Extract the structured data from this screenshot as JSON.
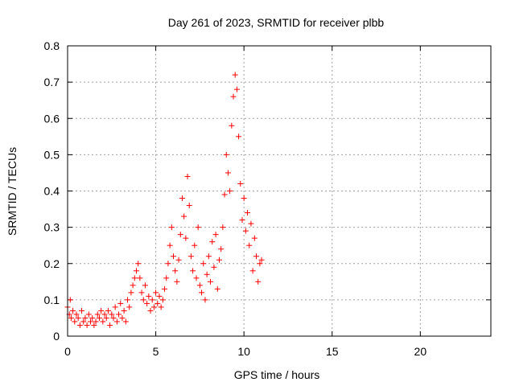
{
  "chart_data": {
    "type": "scatter",
    "title": "Day 261 of 2023, SRMTID for receiver plbb",
    "xlabel": "GPS time / hours",
    "ylabel": "SRMTID / TECUs",
    "xlim": [
      0,
      24
    ],
    "ylim": [
      0,
      0.8
    ],
    "x_ticks": [
      0,
      5,
      10,
      15,
      20
    ],
    "x_tick_labels": [
      "0",
      "5",
      "10",
      "15",
      "20"
    ],
    "y_ticks": [
      0,
      0.1,
      0.2,
      0.3,
      0.4,
      0.5,
      0.6,
      0.7,
      0.8
    ],
    "y_tick_labels": [
      "0",
      "0.1",
      "0.2",
      "0.3",
      "0.4",
      "0.5",
      "0.6",
      "0.7",
      "0.8"
    ],
    "grid": true,
    "marker": "+",
    "marker_color": "#ff0000",
    "series": [
      {
        "name": "SRMTID",
        "points": [
          [
            0.0,
            0.08
          ],
          [
            0.1,
            0.06
          ],
          [
            0.15,
            0.1
          ],
          [
            0.2,
            0.05
          ],
          [
            0.3,
            0.07
          ],
          [
            0.4,
            0.04
          ],
          [
            0.5,
            0.06
          ],
          [
            0.6,
            0.05
          ],
          [
            0.7,
            0.03
          ],
          [
            0.8,
            0.07
          ],
          [
            0.9,
            0.04
          ],
          [
            1.0,
            0.05
          ],
          [
            1.1,
            0.03
          ],
          [
            1.2,
            0.06
          ],
          [
            1.3,
            0.04
          ],
          [
            1.4,
            0.05
          ],
          [
            1.5,
            0.03
          ],
          [
            1.6,
            0.04
          ],
          [
            1.7,
            0.06
          ],
          [
            1.8,
            0.05
          ],
          [
            1.9,
            0.07
          ],
          [
            2.0,
            0.04
          ],
          [
            2.1,
            0.06
          ],
          [
            2.2,
            0.05
          ],
          [
            2.3,
            0.07
          ],
          [
            2.4,
            0.03
          ],
          [
            2.5,
            0.06
          ],
          [
            2.6,
            0.05
          ],
          [
            2.7,
            0.08
          ],
          [
            2.8,
            0.04
          ],
          [
            2.9,
            0.06
          ],
          [
            3.0,
            0.09
          ],
          [
            3.1,
            0.05
          ],
          [
            3.2,
            0.07
          ],
          [
            3.3,
            0.04
          ],
          [
            3.4,
            0.1
          ],
          [
            3.5,
            0.08
          ],
          [
            3.6,
            0.12
          ],
          [
            3.7,
            0.14
          ],
          [
            3.8,
            0.16
          ],
          [
            3.9,
            0.18
          ],
          [
            4.0,
            0.2
          ],
          [
            4.1,
            0.16
          ],
          [
            4.2,
            0.12
          ],
          [
            4.3,
            0.1
          ],
          [
            4.4,
            0.14
          ],
          [
            4.5,
            0.09
          ],
          [
            4.6,
            0.11
          ],
          [
            4.7,
            0.07
          ],
          [
            4.8,
            0.1
          ],
          [
            4.9,
            0.08
          ],
          [
            5.0,
            0.12
          ],
          [
            5.1,
            0.09
          ],
          [
            5.2,
            0.11
          ],
          [
            5.3,
            0.08
          ],
          [
            5.4,
            0.1
          ],
          [
            5.5,
            0.13
          ],
          [
            5.6,
            0.16
          ],
          [
            5.7,
            0.2
          ],
          [
            5.8,
            0.25
          ],
          [
            5.9,
            0.3
          ],
          [
            6.0,
            0.22
          ],
          [
            6.1,
            0.18
          ],
          [
            6.2,
            0.15
          ],
          [
            6.3,
            0.21
          ],
          [
            6.4,
            0.28
          ],
          [
            6.5,
            0.38
          ],
          [
            6.6,
            0.33
          ],
          [
            6.7,
            0.27
          ],
          [
            6.8,
            0.44
          ],
          [
            6.9,
            0.36
          ],
          [
            7.0,
            0.22
          ],
          [
            7.1,
            0.18
          ],
          [
            7.2,
            0.25
          ],
          [
            7.3,
            0.16
          ],
          [
            7.4,
            0.3
          ],
          [
            7.5,
            0.14
          ],
          [
            7.6,
            0.12
          ],
          [
            7.7,
            0.2
          ],
          [
            7.8,
            0.1
          ],
          [
            7.9,
            0.17
          ],
          [
            8.0,
            0.22
          ],
          [
            8.1,
            0.15
          ],
          [
            8.2,
            0.26
          ],
          [
            8.3,
            0.19
          ],
          [
            8.4,
            0.28
          ],
          [
            8.5,
            0.13
          ],
          [
            8.6,
            0.21
          ],
          [
            8.7,
            0.24
          ],
          [
            8.8,
            0.3
          ],
          [
            8.9,
            0.39
          ],
          [
            9.0,
            0.5
          ],
          [
            9.1,
            0.45
          ],
          [
            9.2,
            0.4
          ],
          [
            9.3,
            0.58
          ],
          [
            9.4,
            0.66
          ],
          [
            9.5,
            0.72
          ],
          [
            9.6,
            0.68
          ],
          [
            9.7,
            0.55
          ],
          [
            9.8,
            0.42
          ],
          [
            9.9,
            0.32
          ],
          [
            10.0,
            0.38
          ],
          [
            10.1,
            0.29
          ],
          [
            10.2,
            0.34
          ],
          [
            10.3,
            0.25
          ],
          [
            10.4,
            0.31
          ],
          [
            10.5,
            0.18
          ],
          [
            10.6,
            0.27
          ],
          [
            10.7,
            0.22
          ],
          [
            10.8,
            0.15
          ],
          [
            10.9,
            0.2
          ],
          [
            11.0,
            0.21
          ]
        ]
      }
    ]
  }
}
